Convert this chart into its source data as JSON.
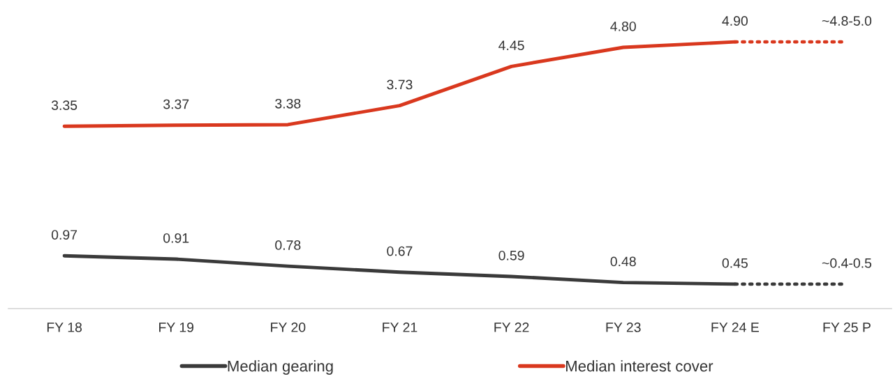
{
  "chart_data": {
    "type": "line",
    "categories": [
      "FY 18",
      "FY 19",
      "FY 20",
      "FY 21",
      "FY 22",
      "FY 23",
      "FY 24 E",
      "FY 25 P"
    ],
    "tick_labels": "x",
    "legend": "bottom",
    "grid": false,
    "marker": "none",
    "series": [
      {
        "name": "Median gearing",
        "color": "#3a3a3a",
        "line_style": "solid",
        "values": [
          0.97,
          0.91,
          0.78,
          0.67,
          0.59,
          0.48,
          0.45,
          null
        ],
        "value_labels": [
          "0.97",
          "0.91",
          "0.78",
          "0.67",
          "0.59",
          "0.48",
          "0.45",
          null
        ]
      },
      {
        "name": "Median interest cover",
        "color": "#d9381e",
        "line_style": "solid",
        "values": [
          3.35,
          3.37,
          3.38,
          3.73,
          4.45,
          4.8,
          4.9,
          null
        ],
        "value_labels": [
          "3.35",
          "3.37",
          "3.38",
          "3.73",
          "4.45",
          "4.80",
          "4.90",
          null
        ]
      },
      {
        "color": "#3a3a3a",
        "line_style": "dotted",
        "values": [
          null,
          null,
          null,
          null,
          null,
          null,
          0.45,
          0.45
        ],
        "value_labels": [
          null,
          null,
          null,
          null,
          null,
          null,
          null,
          "~0.4-0.5"
        ]
      },
      {
        "color": "#d9381e",
        "line_style": "dotted",
        "values": [
          null,
          null,
          null,
          null,
          null,
          null,
          4.9,
          4.9
        ],
        "value_labels": [
          null,
          null,
          null,
          null,
          null,
          null,
          null,
          "~4.8-5.0"
        ]
      }
    ]
  }
}
